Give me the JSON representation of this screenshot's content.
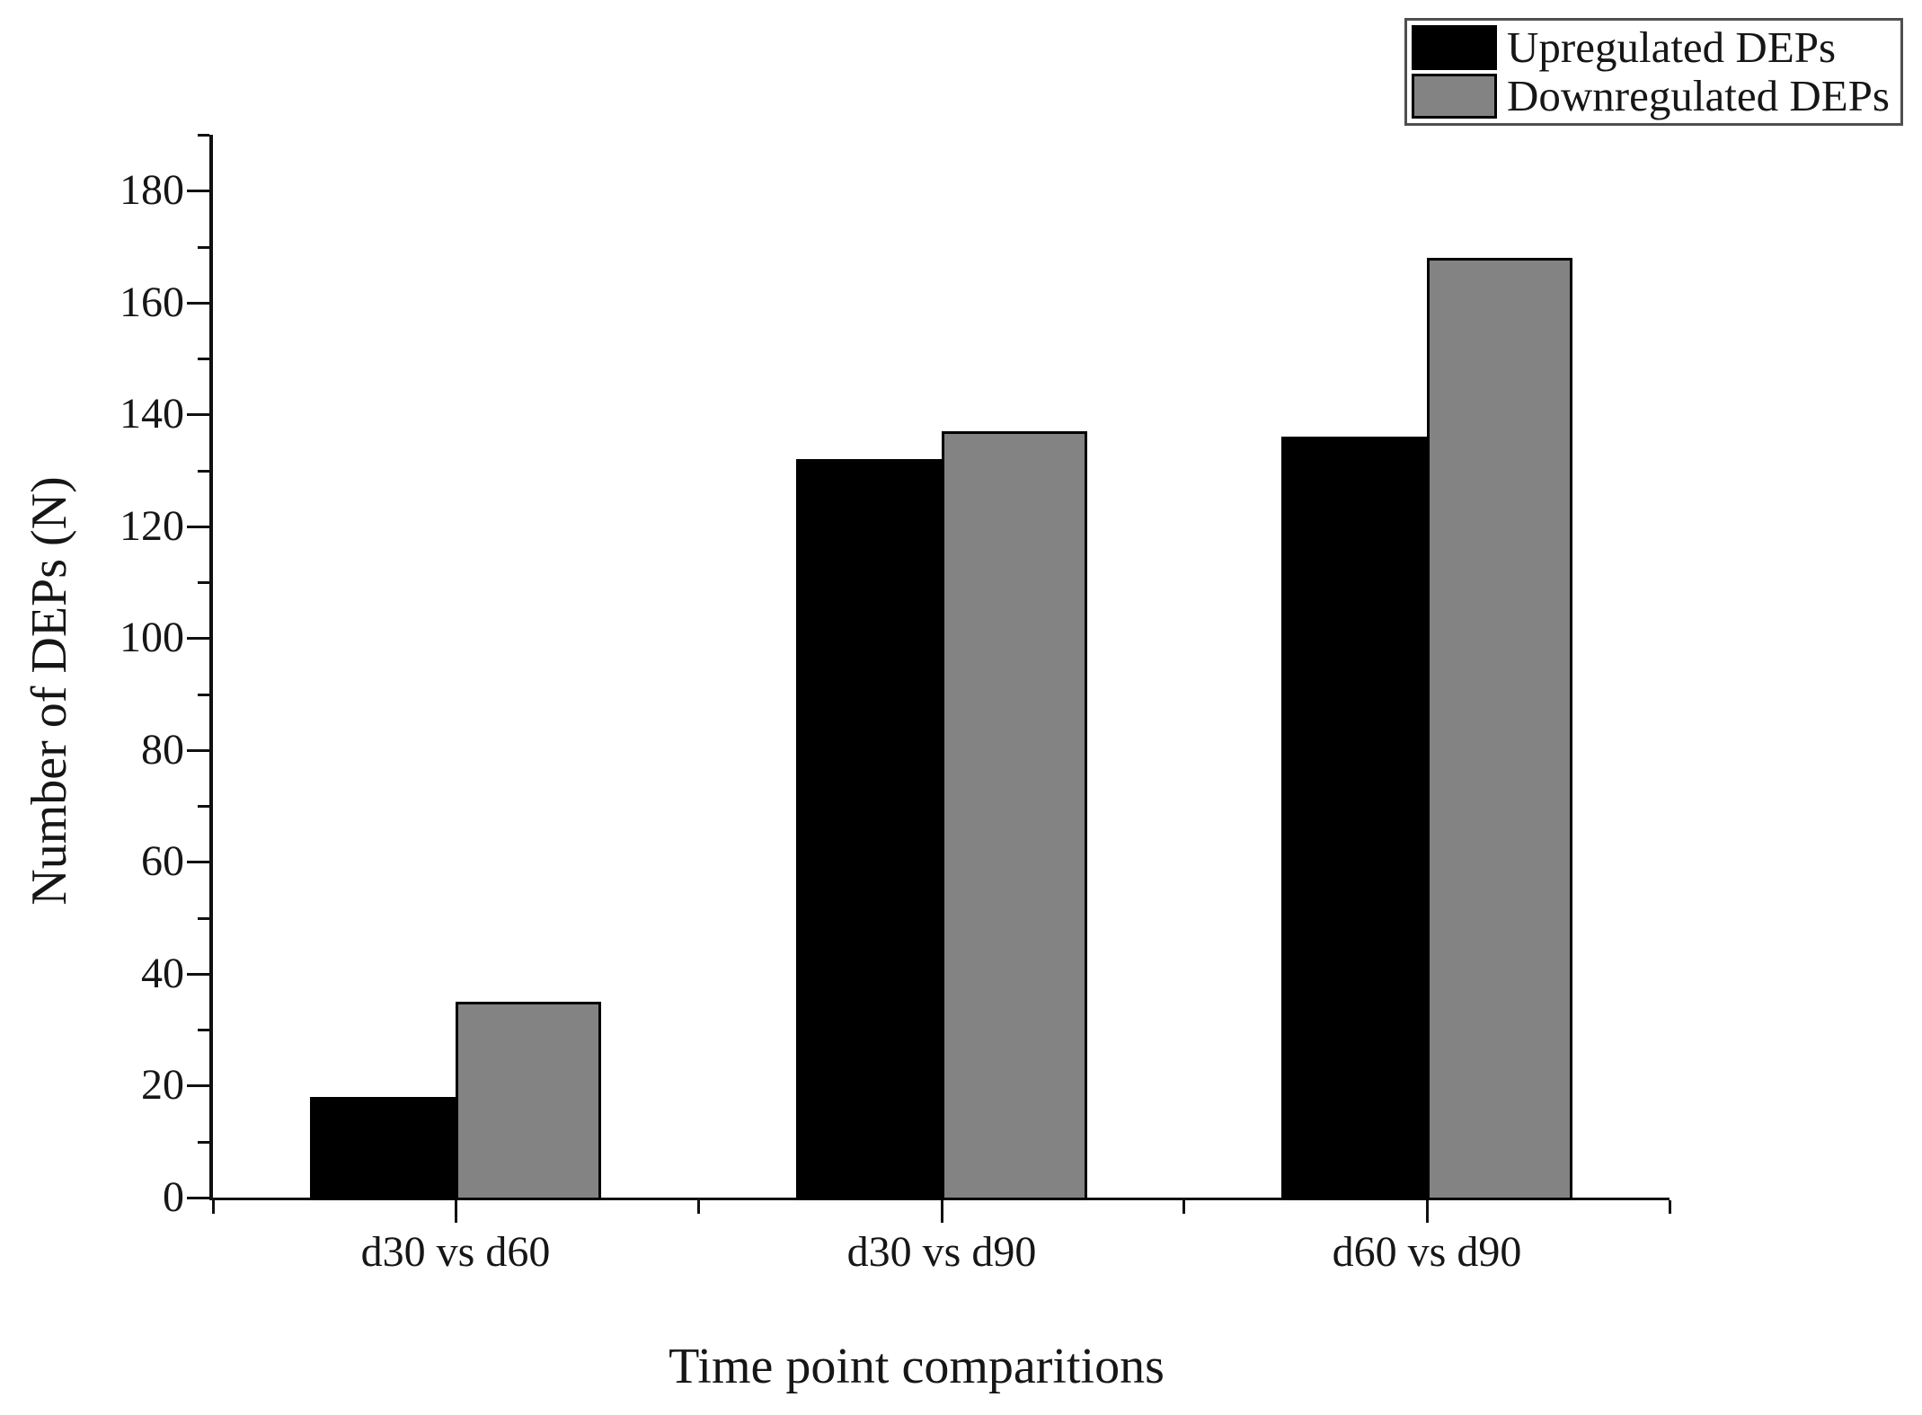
{
  "chart_data": {
    "type": "bar",
    "title": "",
    "xlabel": "Time point comparitions",
    "ylabel": "Number of DEPs (N)",
    "categories": [
      "d30 vs d60",
      "d30 vs d90",
      "d60 vs d90"
    ],
    "series": [
      {
        "name": "Upregulated DEPs",
        "color": "#000000",
        "values": [
          18,
          132,
          136
        ]
      },
      {
        "name": "Downregulated DEPs",
        "color": "#838383",
        "values": [
          35,
          137,
          168
        ]
      }
    ],
    "ylim": [
      0,
      190
    ],
    "y_major_step": 20,
    "y_minor_step": 10,
    "y_ticks": [
      0,
      20,
      40,
      60,
      80,
      100,
      120,
      140,
      160,
      180
    ],
    "grid": false,
    "legend_position": "top-right",
    "axis_color": "#111111",
    "background_color": "#ffffff"
  }
}
